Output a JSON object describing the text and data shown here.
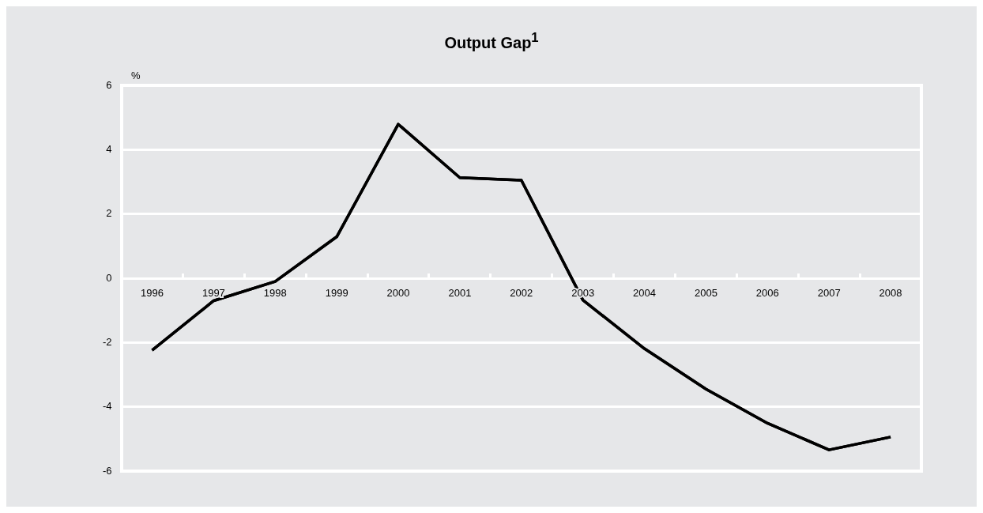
{
  "chart_data": {
    "type": "line",
    "title": "Output Gap$^{1}$",
    "ylabel": "%",
    "categories": [
      "1996",
      "1997",
      "1998",
      "1999",
      "2000",
      "2001",
      "2002",
      "2003",
      "2004",
      "2005",
      "2006",
      "2007",
      "2008"
    ],
    "series": [
      {
        "color": "#000000",
        "values": [
          -2.24,
          -0.7,
          -0.1,
          1.29,
          4.79,
          3.13,
          3.05,
          -0.68,
          -2.19,
          -3.45,
          -4.51,
          -5.34,
          -4.94
        ]
      }
    ],
    "ylim": [
      -6,
      6
    ],
    "yticks": [
      -6,
      -4,
      -2,
      0,
      2,
      4,
      6
    ],
    "grid": "y",
    "legend": false,
    "marker": "none",
    "line_style": "solid"
  }
}
